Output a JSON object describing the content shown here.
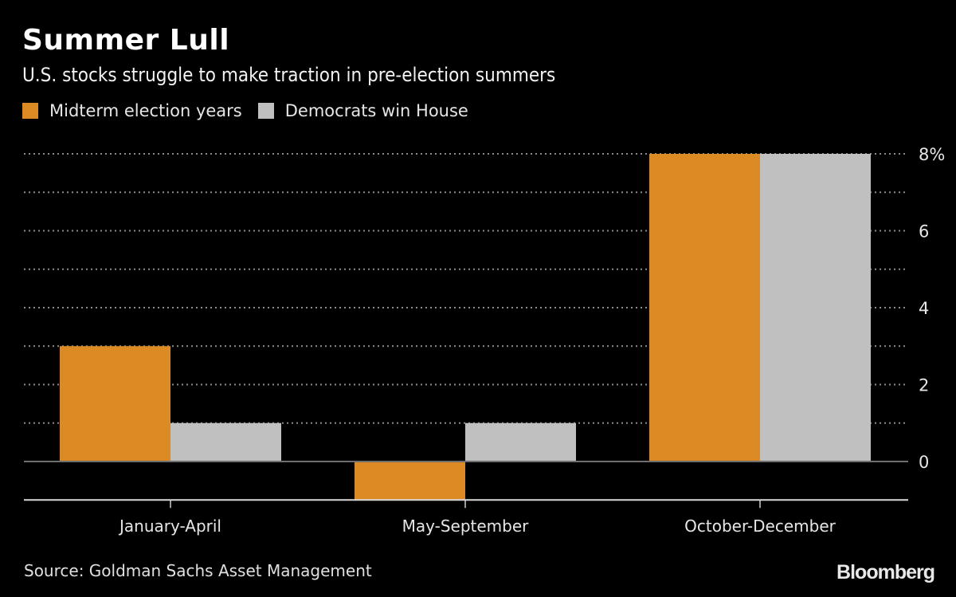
{
  "header": {
    "title": "Summer Lull",
    "subtitle": "U.S. stocks struggle to make traction in pre-election summers"
  },
  "footer": {
    "source": "Source: Goldman Sachs Asset Management",
    "logo": "Bloomberg"
  },
  "chart_data": {
    "type": "bar",
    "title": "Summer Lull",
    "subtitle": "U.S. stocks struggle to make traction in pre-election summers",
    "xlabel": "",
    "ylabel": "",
    "categories": [
      "January-April",
      "May-September",
      "October-December"
    ],
    "series": [
      {
        "name": "Midterm election years",
        "color": "#dc8a24",
        "values": [
          3,
          -1,
          8
        ]
      },
      {
        "name": "Democrats win House",
        "color": "#c0c0c0",
        "values": [
          1,
          1,
          8
        ]
      }
    ],
    "ylim": [
      -1,
      8
    ],
    "yticks": [
      0,
      2,
      4,
      6,
      8
    ],
    "ytick_labels": [
      "0",
      "2",
      "4",
      "6",
      "8%"
    ],
    "grid": true,
    "y_axis_side": "right",
    "legend_position": "top-left"
  }
}
